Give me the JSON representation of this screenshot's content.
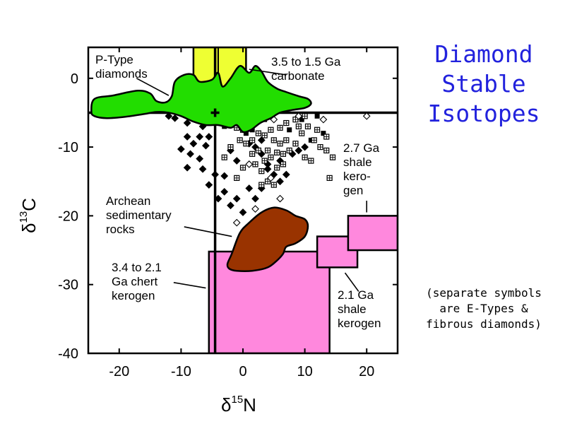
{
  "title": {
    "lines": [
      "Diamond",
      "Stable",
      "Isotopes"
    ],
    "color": "#2222dd"
  },
  "note": {
    "lines": [
      "(separate symbols",
      "are E-Types &",
      "fibrous diamonds)"
    ]
  },
  "chart_data": {
    "type": "scatter",
    "xlabel": "δ15N",
    "ylabel": "δ13C",
    "xlim": [
      -25,
      25
    ],
    "ylim": [
      -40,
      4.5
    ],
    "xticks": [
      "-20",
      "-10",
      "0",
      "10",
      "20"
    ],
    "xtick_values": [
      -20,
      -10,
      0,
      10,
      20
    ],
    "yticks": [
      "0",
      "-10",
      "-20",
      "-30",
      "-40"
    ],
    "ytick_values": [
      0,
      -10,
      -20,
      -30,
      -40
    ],
    "grid": false,
    "reference_lines": {
      "x": -4.5,
      "y": -5
    },
    "reference_point": {
      "x": -4.5,
      "y": -5,
      "marker": "plus"
    },
    "regions": [
      {
        "name": "P-Type diamonds",
        "color": "#22dd00",
        "outline": [
          [
            -24.5,
            -4.8
          ],
          [
            -24,
            -3
          ],
          [
            -21,
            -2.5
          ],
          [
            -17,
            -1.8
          ],
          [
            -15,
            -2.2
          ],
          [
            -14,
            -3.3
          ],
          [
            -12.5,
            -3.5
          ],
          [
            -11.5,
            -2.6
          ],
          [
            -11,
            -0.5
          ],
          [
            -9.5,
            0.5
          ],
          [
            -8,
            0.5
          ],
          [
            -7,
            -0.5
          ],
          [
            -5,
            -0.2
          ],
          [
            -4,
            0.8
          ],
          [
            -3.3,
            -1.2
          ],
          [
            -2,
            0
          ],
          [
            -0.5,
            1.8
          ],
          [
            1,
            0.8
          ],
          [
            2,
            1.8
          ],
          [
            3,
            1
          ],
          [
            4,
            -0.5
          ],
          [
            5.5,
            -1.5
          ],
          [
            7,
            -2
          ],
          [
            9,
            -2.6
          ],
          [
            10.5,
            -3
          ],
          [
            11,
            -3.7
          ],
          [
            10,
            -4.3
          ],
          [
            8,
            -4.6
          ],
          [
            6,
            -5
          ],
          [
            4.5,
            -5.8
          ],
          [
            2.8,
            -6.5
          ],
          [
            1.3,
            -7.5
          ],
          [
            0,
            -7.8
          ],
          [
            -1,
            -6.8
          ],
          [
            -2,
            -7.2
          ],
          [
            -4,
            -6.8
          ],
          [
            -6,
            -6.8
          ],
          [
            -8,
            -6.3
          ],
          [
            -10,
            -5.5
          ],
          [
            -12,
            -5
          ],
          [
            -14,
            -4.9
          ],
          [
            -16,
            -5.2
          ],
          [
            -19,
            -5.6
          ],
          [
            -22,
            -5.8
          ],
          [
            -24,
            -5.5
          ]
        ]
      },
      {
        "name": "Archean sedimentary rocks",
        "color": "#993300",
        "outline": [
          [
            -2.5,
            -27
          ],
          [
            -1.8,
            -25.5
          ],
          [
            -0.5,
            -22.5
          ],
          [
            1,
            -21
          ],
          [
            3,
            -19.5
          ],
          [
            5,
            -18.8
          ],
          [
            7,
            -19.2
          ],
          [
            8.5,
            -20
          ],
          [
            10,
            -20.5
          ],
          [
            10.5,
            -21.5
          ],
          [
            10,
            -23
          ],
          [
            8.5,
            -24
          ],
          [
            7,
            -24.5
          ],
          [
            6.5,
            -25.5
          ],
          [
            5.5,
            -26.5
          ],
          [
            4,
            -27.5
          ],
          [
            1.5,
            -28
          ],
          [
            -1,
            -28
          ],
          [
            -2.2,
            -27.7
          ]
        ]
      }
    ],
    "rectangles": [
      {
        "name": "3.5 to 1.5 Ga carbonate",
        "x": [
          -8,
          0.5
        ],
        "y": [
          -5,
          4.5
        ],
        "color": "#eeff33",
        "divider_x": -4
      },
      {
        "name": "3.4 to 2.1 Ga chert kerogen",
        "x": [
          -5.5,
          14
        ],
        "y": [
          -40,
          -25.2
        ],
        "color": "#ff88dd",
        "divider_x": -4.5
      },
      {
        "name": "2.1 Ga shale kerogen",
        "x": [
          12,
          18.5
        ],
        "y": [
          -27.5,
          -23
        ],
        "color": "#ff88dd"
      },
      {
        "name": "2.7 Ga shale kerogen",
        "x": [
          17,
          25
        ],
        "y": [
          -25,
          -20
        ],
        "color": "#ff88dd"
      }
    ],
    "annotations": [
      {
        "lines": [
          "P-Type",
          "diamonds"
        ],
        "pointer": [
          [
            -17.2,
            0
          ],
          [
            -12,
            -2.5
          ]
        ]
      },
      {
        "lines": [
          "3.5 to 1.5 Ga",
          "carbonate"
        ],
        "pointer": [
          [
            7,
            0.5
          ],
          [
            1,
            1.3
          ]
        ]
      },
      {
        "lines": [
          "2.7 Ga",
          "shale",
          "kero-",
          "gen"
        ],
        "pointer": [
          [
            20,
            -17.8
          ],
          [
            20,
            -19.5
          ]
        ]
      },
      {
        "lines": [
          "Archean",
          "sedimentary",
          "rocks"
        ],
        "pointer": [
          [
            -9.5,
            -21.6
          ],
          [
            -1.8,
            -23
          ]
        ]
      },
      {
        "lines": [
          "3.4 to 2.1",
          "Ga chert",
          "kerogen"
        ],
        "pointer": [
          [
            -11.2,
            -29.7
          ],
          [
            -6,
            -30.5
          ]
        ]
      },
      {
        "lines": [
          "2.1 Ga",
          "shale",
          "kerogen"
        ],
        "pointer": [
          [
            18.7,
            -31
          ],
          [
            16.5,
            -28.3
          ]
        ]
      }
    ],
    "series": [
      {
        "marker": "diamond-filled",
        "points": [
          [
            -12,
            -5.5
          ],
          [
            -11,
            -5.8
          ],
          [
            -9,
            -6.5
          ],
          [
            -8,
            -5.5
          ],
          [
            -6.5,
            -7
          ],
          [
            -6,
            -6
          ],
          [
            -5.5,
            -8.5
          ],
          [
            -7,
            -8.5
          ],
          [
            -9,
            -8.5
          ],
          [
            -8,
            -9.5
          ],
          [
            -6,
            -9.8
          ],
          [
            -10,
            -10.3
          ],
          [
            -8.5,
            -11
          ],
          [
            -7,
            -11.7
          ],
          [
            -9,
            -13
          ],
          [
            -6.5,
            -13.2
          ],
          [
            -4.5,
            -14
          ],
          [
            -3,
            -14.2
          ],
          [
            -5.5,
            -15.5
          ],
          [
            -3,
            -16.5
          ],
          [
            -1,
            -17.5
          ],
          [
            -2,
            -18.5
          ],
          [
            -4,
            -17.5
          ],
          [
            0,
            -19.5
          ],
          [
            1,
            -16
          ],
          [
            2,
            -17.5
          ],
          [
            3,
            -16
          ],
          [
            4,
            -13.2
          ],
          [
            5,
            -14
          ],
          [
            6,
            -12
          ],
          [
            4,
            -12.5
          ],
          [
            3,
            -11
          ],
          [
            6,
            -15
          ],
          [
            7,
            -14
          ],
          [
            8,
            -11
          ],
          [
            9,
            -10.5
          ],
          [
            10,
            -10
          ],
          [
            -2,
            -6.5
          ],
          [
            -1,
            -7
          ],
          [
            0,
            -6
          ],
          [
            1,
            -6.5
          ],
          [
            -2,
            -10.5
          ],
          [
            -1,
            -12
          ],
          [
            2,
            -10
          ],
          [
            3,
            -9
          ],
          [
            1,
            -9.5
          ]
        ]
      },
      {
        "marker": "square-filled",
        "points": [
          [
            -3,
            -7
          ],
          [
            -2,
            -6.5
          ],
          [
            0.5,
            -8
          ],
          [
            1.5,
            -7.5
          ],
          [
            3.5,
            -6
          ],
          [
            7.5,
            -7.5
          ],
          [
            9.5,
            -6
          ],
          [
            12,
            -5.5
          ],
          [
            13,
            -8
          ],
          [
            11,
            -9
          ]
        ]
      },
      {
        "marker": "square-hatched",
        "points": [
          [
            -6,
            -4.5
          ],
          [
            -7,
            -5.5
          ],
          [
            -5,
            -5.5
          ],
          [
            -3,
            -5.8
          ],
          [
            -2,
            -6.8
          ],
          [
            -1,
            -7.2
          ],
          [
            0,
            -7.5
          ],
          [
            0.5,
            -9.5
          ],
          [
            1.5,
            -9
          ],
          [
            2.5,
            -8
          ],
          [
            3.5,
            -8.3
          ],
          [
            4.5,
            -7.5
          ],
          [
            5,
            -9
          ],
          [
            6,
            -9.5
          ],
          [
            5.5,
            -10.8
          ],
          [
            4.5,
            -11.5
          ],
          [
            3.5,
            -12
          ],
          [
            2,
            -12.5
          ],
          [
            3,
            -13.5
          ],
          [
            4,
            -15
          ],
          [
            5,
            -15.5
          ],
          [
            6.5,
            -12.5
          ],
          [
            6.5,
            -11
          ],
          [
            7.5,
            -10.5
          ],
          [
            7,
            -9
          ],
          [
            8.5,
            -9.5
          ],
          [
            9.5,
            -8
          ],
          [
            10.5,
            -7
          ],
          [
            11.5,
            -9
          ],
          [
            12.5,
            -10
          ],
          [
            13.5,
            -10.5
          ],
          [
            13.5,
            -8.5
          ],
          [
            12,
            -7.5
          ],
          [
            8.5,
            -6
          ],
          [
            10,
            -5.5
          ],
          [
            7,
            -6.5
          ],
          [
            4,
            -10.5
          ],
          [
            2.5,
            -10.5
          ],
          [
            1.5,
            -11
          ],
          [
            14.5,
            -11.5
          ],
          [
            14,
            -14.5
          ],
          [
            10,
            -11.5
          ],
          [
            11,
            -12
          ],
          [
            5.5,
            -13
          ],
          [
            3,
            -15.5
          ],
          [
            -1,
            -14.5
          ],
          [
            0,
            -13
          ],
          [
            -3,
            -11.5
          ],
          [
            -2,
            -10
          ],
          [
            -0.5,
            -9
          ],
          [
            6,
            -7.2
          ],
          [
            9,
            -7
          ]
        ]
      },
      {
        "marker": "diamond-open",
        "points": [
          [
            5,
            -6
          ],
          [
            9,
            -5.5
          ],
          [
            13,
            -6
          ],
          [
            20,
            -5.5
          ],
          [
            1,
            -12.5
          ],
          [
            4.5,
            -14.5
          ],
          [
            2,
            -19
          ],
          [
            6,
            -17.5
          ],
          [
            -1,
            -21
          ],
          [
            8.5,
            -20.5
          ]
        ]
      }
    ]
  }
}
